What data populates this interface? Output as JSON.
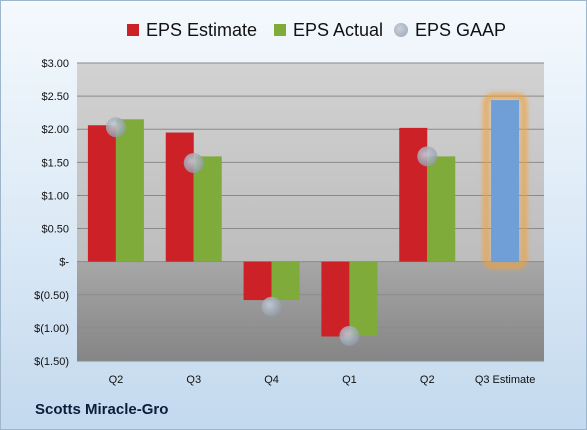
{
  "legend": {
    "estimate_label": "EPS Estimate",
    "actual_label": "EPS Actual",
    "gaap_label": "EPS GAAP"
  },
  "company": "Scotts Miracle-Gro",
  "colors": {
    "estimate": "#cc2127",
    "actual": "#7fab3b",
    "gaap": "#a5aeb9",
    "projected": "#6f9fd6",
    "projected_glow": "#f2a13a"
  },
  "chart_data": {
    "type": "bar",
    "categories": [
      "Q2",
      "Q3",
      "Q4",
      "Q1",
      "Q2",
      "Q3 Estimate"
    ],
    "series": [
      {
        "name": "EPS Estimate",
        "values": [
          2.06,
          1.95,
          -0.58,
          -1.13,
          2.02,
          null
        ]
      },
      {
        "name": "EPS Actual",
        "values": [
          2.15,
          1.59,
          -0.58,
          -1.12,
          1.59,
          2.44
        ]
      },
      {
        "name": "EPS GAAP",
        "values": [
          2.03,
          1.49,
          -0.68,
          -1.12,
          1.59,
          null
        ]
      }
    ],
    "projected_category": "Q3 Estimate",
    "yticks": [
      {
        "v": 3.0,
        "label": "$3.00"
      },
      {
        "v": 2.5,
        "label": "$2.50"
      },
      {
        "v": 2.0,
        "label": "$2.00"
      },
      {
        "v": 1.5,
        "label": "$1.50"
      },
      {
        "v": 1.0,
        "label": "$1.00"
      },
      {
        "v": 0.5,
        "label": "$0.50"
      },
      {
        "v": 0.0,
        "label": "$-"
      },
      {
        "v": -0.5,
        "label": "$(0.50)"
      },
      {
        "v": -1.0,
        "label": "$(1.00)"
      },
      {
        "v": -1.5,
        "label": "$(1.50)"
      }
    ],
    "ylim": [
      -1.5,
      3.0
    ],
    "grid": true
  }
}
